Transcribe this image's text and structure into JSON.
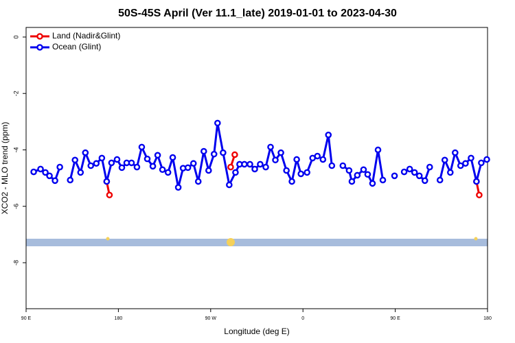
{
  "chart_data": {
    "type": "line",
    "title": "50S-45S April (Ver 11.1_late)   2019-01-01 to 2023-04-30",
    "xlabel": "Longitude (deg E)",
    "ylabel": "XCO2 - MLO trend (ppm)",
    "xlim": [
      90,
      540
    ],
    "ylim": [
      -9.63,
      0.34
    ],
    "xticks": [
      {
        "value": 90,
        "label": "90 E"
      },
      {
        "value": 180,
        "label": "180"
      },
      {
        "value": 270,
        "label": "90 W"
      },
      {
        "value": 360,
        "label": "0"
      },
      {
        "value": 450,
        "label": "90 E"
      },
      {
        "value": 540,
        "label": "180"
      }
    ],
    "yticks": [
      0,
      -2,
      -4,
      -6,
      -8
    ],
    "legend": "upper left",
    "series": [
      {
        "name": "Land (Nadir&Glint)",
        "color": "#ee0000",
        "x": [
          168.6,
          171.3,
          250,
          289.5,
          293.5,
          400,
          529.2,
          531.9
        ],
        "values": [
          -5.12,
          -5.6,
          null,
          -4.61,
          -4.17,
          null,
          -5.12,
          -5.6
        ]
      },
      {
        "name": "Ocean (Glint)",
        "color": "#0000ee",
        "x": [
          97.4,
          104.1,
          108.8,
          112.8,
          118.2,
          122.9,
          128,
          133.0,
          137.7,
          143.1,
          147.8,
          153.1,
          158.5,
          163.9,
          168.6,
          173.3,
          178.7,
          183.4,
          188.1,
          192.8,
          198.1,
          202.8,
          208.2,
          213.6,
          218.3,
          223.0,
          228.4,
          233.0,
          238.4,
          243.1,
          247.8,
          253.2,
          257.9,
          263.3,
          268.0,
          273.3,
          276.7,
          282.1,
          288.1,
          294.2,
          298.2,
          302.9,
          308.3,
          313.0,
          318.3,
          323.7,
          328.4,
          333.1,
          338.5,
          343.9,
          349.2,
          353.9,
          358.0,
          364.0,
          369.4,
          374.1,
          379.5,
          384.8,
          388.2,
          391,
          398.9,
          405.0,
          407.7,
          413.0,
          419.1,
          423.1,
          427.8,
          433.2,
          437.9,
          443,
          449.3,
          454,
          458.7,
          464.1,
          468.8,
          473.5,
          478.9,
          483.6,
          489,
          493.6,
          498.3,
          503.7,
          508.4,
          513.7,
          518.5,
          523.9,
          529.2,
          533.9,
          539.3
        ],
        "values": [
          -4.78,
          -4.68,
          -4.8,
          -4.92,
          -5.09,
          -4.61,
          null,
          -5.07,
          -4.36,
          -4.8,
          -4.1,
          -4.56,
          -4.48,
          -4.29,
          -5.12,
          -4.46,
          -4.34,
          -4.63,
          -4.46,
          -4.46,
          -4.61,
          -3.9,
          -4.32,
          -4.58,
          -4.19,
          -4.7,
          -4.8,
          -4.27,
          -5.33,
          -4.65,
          -4.63,
          -4.48,
          -5.12,
          -4.05,
          -4.73,
          -4.15,
          -3.05,
          -4.1,
          -5.24,
          -4.8,
          -4.51,
          -4.51,
          -4.51,
          -4.68,
          -4.51,
          -4.61,
          -3.9,
          -4.36,
          -4.1,
          -4.73,
          -5.12,
          -4.34,
          -4.85,
          -4.8,
          -4.29,
          -4.22,
          -4.34,
          -3.47,
          -4.56,
          null,
          -4.56,
          -4.73,
          -5.12,
          -4.9,
          -4.7,
          -4.87,
          -5.19,
          -4.0,
          -5.07,
          null,
          -4.92,
          null,
          -4.78,
          -4.68,
          -4.8,
          -4.92,
          -5.09,
          -4.61,
          null,
          -5.07,
          -4.36,
          -4.8,
          -4.1,
          -4.56,
          -4.48,
          -4.29,
          -5.12,
          -4.46,
          -4.34
        ]
      }
    ]
  }
}
